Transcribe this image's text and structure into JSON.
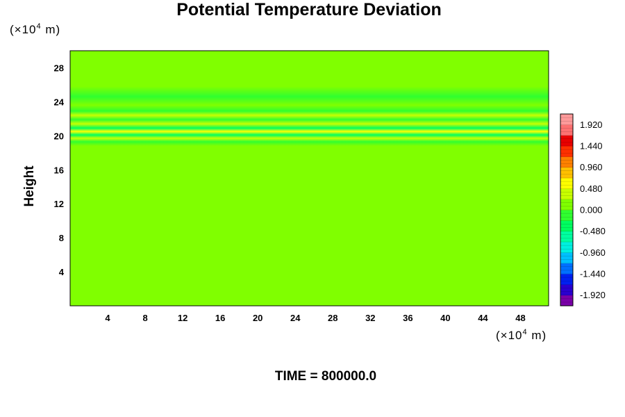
{
  "chart_data": {
    "type": "heatmap",
    "title": "Potential Temperature Deviation",
    "ylabel": "Height",
    "xlabel": "",
    "x_unit": {
      "prefix": "(×10",
      "exp": "4",
      "suffix": " m)"
    },
    "y_unit": {
      "prefix": "(×10",
      "exp": "4",
      "suffix": " m)"
    },
    "xlim": [
      0,
      51
    ],
    "ylim": [
      0,
      30
    ],
    "x_ticks": [
      4,
      8,
      12,
      16,
      20,
      24,
      28,
      32,
      36,
      40,
      44,
      48
    ],
    "y_ticks": [
      4,
      8,
      12,
      16,
      20,
      24,
      28
    ],
    "colorbar": {
      "ticks": [
        "1.920",
        "1.440",
        "0.960",
        "0.480",
        "0.000",
        "-0.480",
        "-0.960",
        "-1.440",
        "-1.920"
      ],
      "range": [
        -2.16,
        2.16
      ],
      "colors": [
        "#7a00a8",
        "#2a00d0",
        "#0020f0",
        "#0070ff",
        "#00c0ff",
        "#00f0e0",
        "#00ffa0",
        "#00ff60",
        "#30ff30",
        "#80ff00",
        "#c8ff00",
        "#ffff00",
        "#ffc000",
        "#ff8000",
        "#ff3000",
        "#e80000",
        "#ff7070",
        "#ff9a9a"
      ]
    },
    "field_bands": [
      {
        "y": 0.0,
        "value": 0.16
      },
      {
        "y": 8.5,
        "value": 0.14
      },
      {
        "y": 9.6,
        "value": 0.22
      },
      {
        "y": 10.6,
        "value": 0.08
      },
      {
        "y": 11.8,
        "value": 0.03
      },
      {
        "y": 12.6,
        "value": 0.06
      },
      {
        "y": 14.0,
        "value": 0.12
      },
      {
        "y": 18.8,
        "value": 0.02
      },
      {
        "y": 19.3,
        "value": -0.2
      },
      {
        "y": 19.7,
        "value": 0.28
      },
      {
        "y": 20.1,
        "value": -0.28
      },
      {
        "y": 20.5,
        "value": 0.5
      },
      {
        "y": 20.9,
        "value": -0.3
      },
      {
        "y": 21.4,
        "value": 0.44
      },
      {
        "y": 21.9,
        "value": -0.24
      },
      {
        "y": 22.4,
        "value": 0.28
      },
      {
        "y": 22.9,
        "value": -0.1
      },
      {
        "y": 23.6,
        "value": 0.06
      },
      {
        "y": 24.6,
        "value": -0.08
      },
      {
        "y": 25.8,
        "value": 0.0
      },
      {
        "y": 27.0,
        "value": 0.04
      },
      {
        "y": 28.2,
        "value": 0.18
      },
      {
        "y": 30.0,
        "value": 0.1
      }
    ]
  },
  "footer": {
    "time_label": "TIME = 800000.0"
  }
}
